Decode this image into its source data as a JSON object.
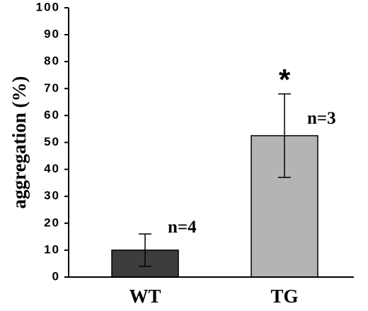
{
  "chart_data": {
    "type": "bar",
    "title": "",
    "xlabel": "",
    "ylabel": "aggregation (%)",
    "ylim": [
      0,
      100
    ],
    "yticks": [
      "0",
      "10",
      "20",
      "30",
      "40",
      "50",
      "60",
      "70",
      "80",
      "90",
      "100"
    ],
    "categories": [
      "WT",
      "TG"
    ],
    "values": [
      10,
      52.5
    ],
    "error_low": [
      4,
      37
    ],
    "error_high": [
      16,
      68
    ],
    "annotations": [
      "n=4",
      "n=3"
    ],
    "significance": [
      "",
      "*"
    ],
    "bar_colors": [
      "#3d3d3d",
      "#b4b4b4"
    ],
    "grid": false,
    "legend": "none"
  }
}
